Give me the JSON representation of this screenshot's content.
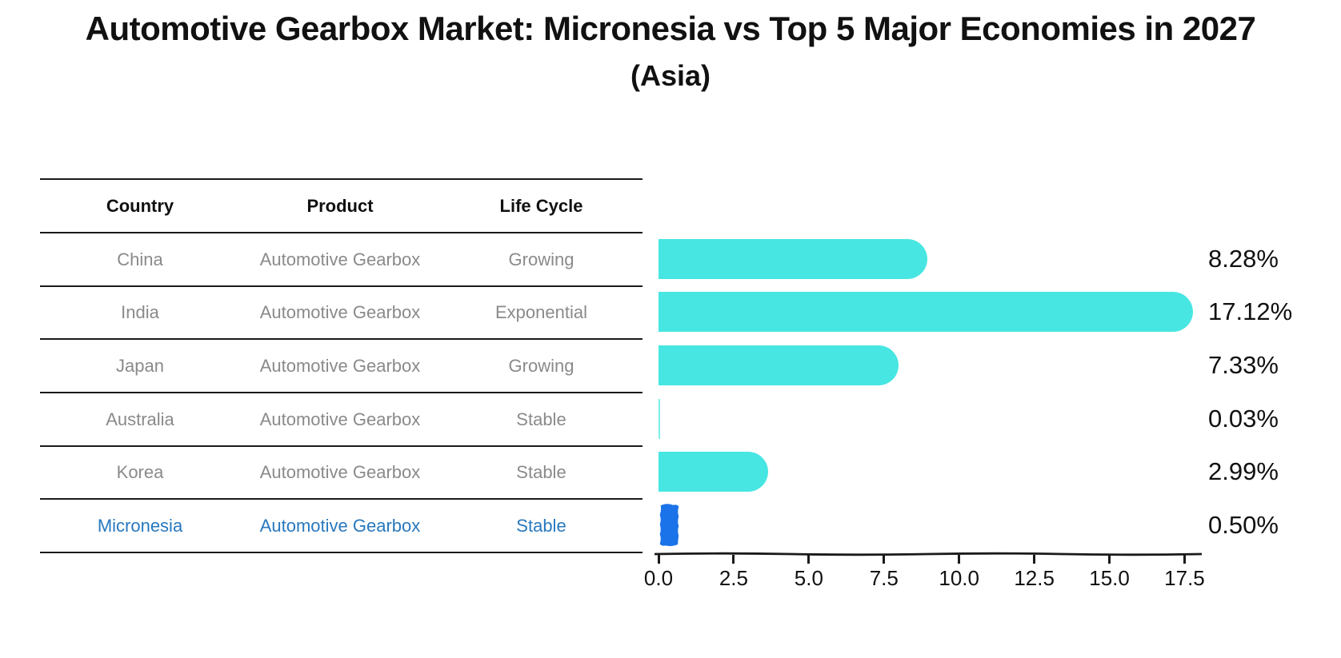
{
  "title": "Automotive Gearbox Market: Micronesia vs Top 5 Major Economies in 2027",
  "subtitle": "(Asia)",
  "table": {
    "headers": [
      "Country",
      "Product",
      "Life Cycle"
    ],
    "rows": [
      {
        "country": "China",
        "product": "Automotive Gearbox",
        "life_cycle": "Growing",
        "value": 8.28,
        "value_label": "8.28%",
        "highlighted": false
      },
      {
        "country": "India",
        "product": "Automotive Gearbox",
        "life_cycle": "Exponential",
        "value": 17.12,
        "value_label": "17.12%",
        "highlighted": false
      },
      {
        "country": "Japan",
        "product": "Automotive Gearbox",
        "life_cycle": "Growing",
        "value": 7.33,
        "value_label": "7.33%",
        "highlighted": false
      },
      {
        "country": "Australia",
        "product": "Automotive Gearbox",
        "life_cycle": "Stable",
        "value": 0.03,
        "value_label": "0.03%",
        "highlighted": false
      },
      {
        "country": "Korea",
        "product": "Automotive Gearbox",
        "life_cycle": "Stable",
        "value": 2.99,
        "value_label": "2.99%",
        "highlighted": false
      },
      {
        "country": "Micronesia",
        "product": "Automotive Gearbox",
        "life_cycle": "Stable",
        "value": 0.5,
        "value_label": "0.50%",
        "highlighted": true
      }
    ]
  },
  "chart_data": {
    "type": "bar",
    "orientation": "horizontal",
    "title": "Automotive Gearbox Market: Micronesia vs Top 5 Major Economies in 2027",
    "subtitle": "(Asia)",
    "categories": [
      "China",
      "India",
      "Japan",
      "Australia",
      "Korea",
      "Micronesia"
    ],
    "values": [
      8.28,
      17.12,
      7.33,
      0.03,
      2.99,
      0.5
    ],
    "data_labels": [
      "8.28%",
      "17.12%",
      "7.33%",
      "0.03%",
      "2.99%",
      "0.50%"
    ],
    "xlabel": "",
    "ylabel": "",
    "xlim": [
      0,
      18
    ],
    "x_ticks": [
      0,
      2.5,
      5,
      7.5,
      10,
      12.5,
      15,
      17.5
    ],
    "x_tick_labels": [
      "0.0",
      "2.5",
      "5.0",
      "7.5",
      "10.0",
      "12.5",
      "15.0",
      "17.5"
    ],
    "grid": false,
    "legend": false,
    "style": "xkcd-sketch",
    "highlight_category": "Micronesia"
  },
  "colors": {
    "bar": "#47e6e2",
    "bar_thin": "#7eeeea",
    "highlight_bar": "#1a73e8",
    "highlight_text": "#2878be",
    "row_text": "#8a8a8a",
    "header_text": "#111111",
    "axis": "#1a1a1a"
  }
}
